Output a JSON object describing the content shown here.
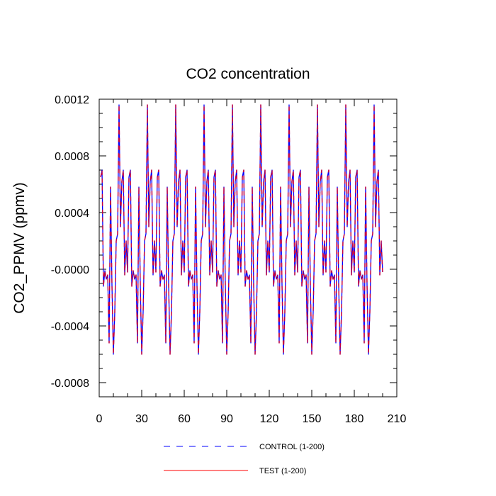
{
  "chart_data": {
    "type": "line",
    "title": "CO2 concentration",
    "xlabel": "",
    "ylabel": "CO2_PPMV  (ppmv)",
    "xlim": [
      0,
      210
    ],
    "ylim": [
      -0.0009,
      0.0012
    ],
    "x_ticks": [
      0,
      30,
      60,
      90,
      120,
      150,
      180,
      210
    ],
    "x_tick_labels": [
      "0",
      "30",
      "60",
      "90",
      "120",
      "150",
      "180",
      "210"
    ],
    "y_ticks": [
      -0.0008,
      -0.0004,
      0.0,
      0.0004,
      0.0008,
      0.0012
    ],
    "y_tick_labels": [
      "-0.0008",
      "-0.0004",
      "-0.0000",
      "0.0004",
      "0.0008",
      "0.0012"
    ],
    "legend_position": "bottom",
    "period": 20,
    "cycle_x": [
      1,
      2,
      3,
      4,
      5,
      6,
      7,
      8,
      9,
      10,
      11,
      12,
      13,
      14,
      15,
      16,
      17,
      18,
      19,
      20
    ],
    "cycle_y": [
      0.00065,
      0.0007,
      -0.00012,
      -1e-05,
      -7e-05,
      -4e-05,
      -0.00052,
      0.00058,
      -0.00011,
      -0.0006,
      -0.0003,
      0.0002,
      0.00025,
      0.00116,
      0.0003,
      0.00062,
      0.0007,
      -4e-05,
      0.0002,
      -2e-05
    ],
    "series": [
      {
        "name": "CONTROL (1-200)",
        "color": "#0000ff",
        "style": "dashed"
      },
      {
        "name": "TEST (1-200)",
        "color": "#ff0000",
        "style": "solid"
      }
    ]
  }
}
